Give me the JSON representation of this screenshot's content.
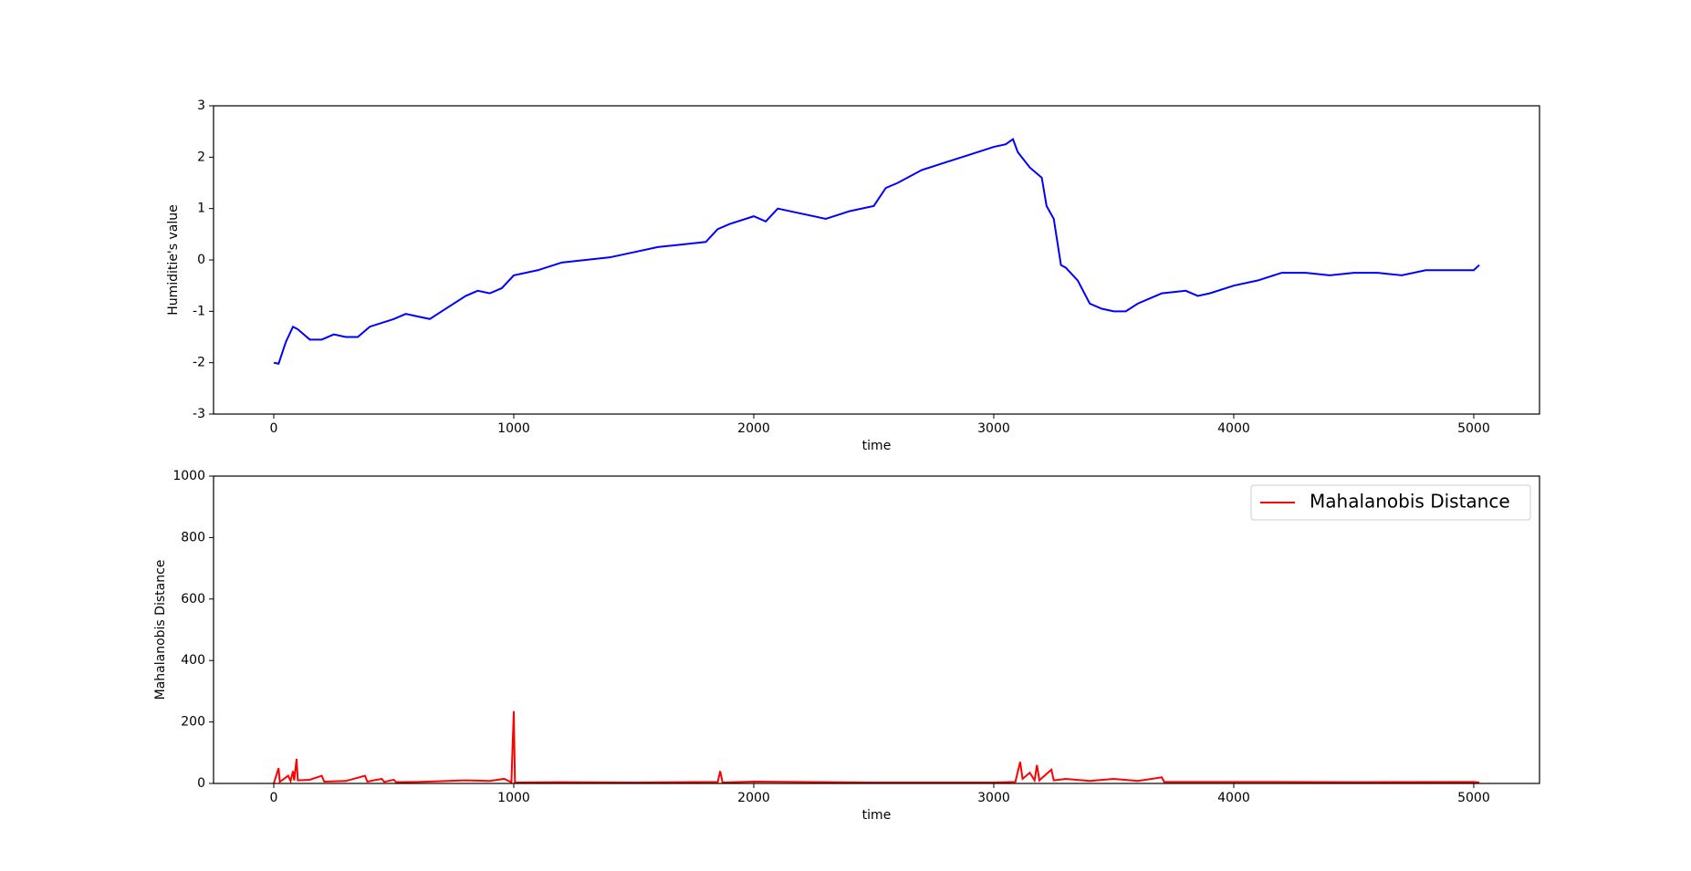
{
  "chart_data": [
    {
      "type": "line",
      "xlabel": "time",
      "ylabel": "Humiditie's value",
      "xlim": [
        -251,
        5274
      ],
      "ylim": [
        -3,
        3
      ],
      "xticks": [
        0,
        1000,
        2000,
        3000,
        4000,
        5000
      ],
      "yticks": [
        -3,
        -2,
        -1,
        0,
        1,
        2,
        3
      ],
      "x": [
        0,
        20,
        50,
        80,
        100,
        150,
        200,
        250,
        300,
        350,
        400,
        500,
        550,
        600,
        650,
        700,
        800,
        850,
        900,
        950,
        1000,
        1100,
        1200,
        1300,
        1400,
        1500,
        1600,
        1700,
        1800,
        1850,
        1900,
        2000,
        2050,
        2100,
        2200,
        2300,
        2400,
        2500,
        2550,
        2600,
        2700,
        2800,
        2900,
        3000,
        3050,
        3080,
        3100,
        3150,
        3200,
        3220,
        3250,
        3280,
        3300,
        3350,
        3400,
        3450,
        3500,
        3550,
        3600,
        3700,
        3800,
        3850,
        3900,
        4000,
        4100,
        4200,
        4300,
        4400,
        4500,
        4600,
        4700,
        4800,
        4900,
        5000,
        5023
      ],
      "series": [
        {
          "color": "#0000ff",
          "values": [
            -2,
            -2.02,
            -1.6,
            -1.3,
            -1.35,
            -1.55,
            -1.55,
            -1.45,
            -1.5,
            -1.5,
            -1.3,
            -1.15,
            -1.05,
            -1.1,
            -1.15,
            -1.0,
            -0.7,
            -0.6,
            -0.65,
            -0.55,
            -0.3,
            -0.2,
            -0.05,
            0,
            0.05,
            0.15,
            0.25,
            0.3,
            0.35,
            0.6,
            0.7,
            0.85,
            0.75,
            1.0,
            0.9,
            0.8,
            0.95,
            1.05,
            1.4,
            1.5,
            1.75,
            1.9,
            2.05,
            2.2,
            2.25,
            2.35,
            2.1,
            1.8,
            1.6,
            1.05,
            0.8,
            -0.1,
            -0.15,
            -0.4,
            -0.85,
            -0.95,
            -1.0,
            -1.0,
            -0.85,
            -0.65,
            -0.6,
            -0.7,
            -0.65,
            -0.5,
            -0.4,
            -0.25,
            -0.25,
            -0.3,
            -0.25,
            -0.25,
            -0.3,
            -0.2,
            -0.2,
            -0.2,
            -0.1
          ]
        }
      ]
    },
    {
      "type": "line",
      "xlabel": "time",
      "ylabel": "Mahalanobis Distance",
      "xlim": [
        -251,
        5274
      ],
      "ylim": [
        0,
        1000
      ],
      "xticks": [
        0,
        1000,
        2000,
        3000,
        4000,
        5000
      ],
      "yticks": [
        0,
        200,
        400,
        600,
        800,
        1000
      ],
      "legend": "upper right",
      "x": [
        0,
        20,
        25,
        60,
        70,
        80,
        85,
        95,
        100,
        150,
        200,
        210,
        300,
        380,
        390,
        450,
        460,
        500,
        510,
        600,
        800,
        900,
        960,
        990,
        1000,
        1005,
        1200,
        1500,
        1850,
        1860,
        1870,
        2000,
        2500,
        3000,
        3090,
        3110,
        3120,
        3150,
        3170,
        3180,
        3190,
        3240,
        3250,
        3300,
        3400,
        3500,
        3600,
        3700,
        3710,
        4000,
        4500,
        5000,
        5023
      ],
      "series": [
        {
          "name": "Mahalanobis Distance",
          "color": "#ff0000",
          "values": [
            0,
            50,
            5,
            25,
            8,
            40,
            10,
            80,
            10,
            12,
            25,
            6,
            8,
            25,
            6,
            15,
            5,
            12,
            4,
            5,
            10,
            8,
            15,
            4,
            235,
            3,
            4,
            3,
            5,
            40,
            3,
            6,
            3,
            3,
            5,
            70,
            15,
            35,
            10,
            60,
            10,
            45,
            10,
            15,
            8,
            15,
            8,
            20,
            5,
            5,
            4,
            5,
            3
          ]
        }
      ]
    }
  ]
}
